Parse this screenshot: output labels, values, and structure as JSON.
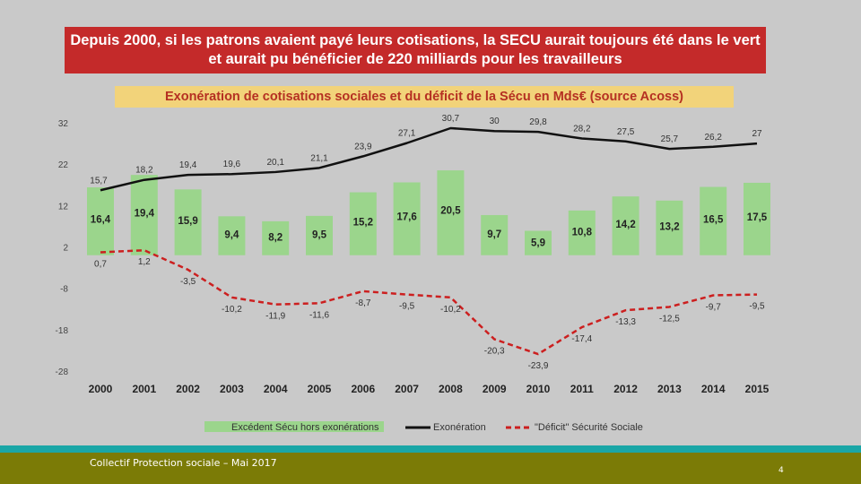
{
  "slide": {
    "title_line1": "Depuis 2000, si les patrons avaient payé leurs cotisations, la SECU aurait toujours été dans le vert",
    "title_line2": "et aurait pu bénéficier de 220 milliards pour les travailleurs",
    "footer": "Collectif Protection sociale – Mai 2017",
    "page_number": "4"
  },
  "colors": {
    "bar": "#9bd58c",
    "exoneration_line": "#111111",
    "deficit_line": "#cc1f1f",
    "banner": "#c42a2a",
    "subtitle_bg": "#f2d37a"
  },
  "chart_data": {
    "type": "bar",
    "title": "Exonération de cotisations sociales et du déficit de la Sécu en Mds€ (source Acoss)",
    "categories": [
      "2000",
      "2001",
      "2002",
      "2003",
      "2004",
      "2005",
      "2006",
      "2007",
      "2008",
      "2009",
      "2010",
      "2011",
      "2012",
      "2013",
      "2014",
      "2015"
    ],
    "series": [
      {
        "name": "Excédent Sécu hors exonérations",
        "kind": "bar",
        "values": [
          16.4,
          19.4,
          15.9,
          9.4,
          8.2,
          9.5,
          15.2,
          17.6,
          20.5,
          9.7,
          5.9,
          10.8,
          14.2,
          13.2,
          16.5,
          17.5
        ],
        "labels": [
          "16,4",
          "19,4",
          "15,9",
          "9,4",
          "8,2",
          "9,5",
          "15,2",
          "17,6",
          "20,5",
          "9,7",
          "5,9",
          "10,8",
          "14,2",
          "13,2",
          "16,5",
          "17,5"
        ]
      },
      {
        "name": "Exonération",
        "kind": "line",
        "values": [
          15.7,
          18.2,
          19.4,
          19.6,
          20.1,
          21.1,
          23.9,
          27.1,
          30.7,
          30,
          29.8,
          28.2,
          27.5,
          25.7,
          26.2,
          27
        ],
        "labels": [
          "15,7",
          "18,2",
          "19,4",
          "19,6",
          "20,1",
          "21,1",
          "23,9",
          "27,1",
          "30,7",
          "30",
          "29,8",
          "28,2",
          "27,5",
          "25,7",
          "26,2",
          "27"
        ]
      },
      {
        "name": "\"Déficit\" Sécurité Sociale",
        "kind": "dashed-line",
        "values": [
          0.7,
          1.2,
          -3.5,
          -10.2,
          -11.9,
          -11.6,
          -8.7,
          -9.5,
          -10.2,
          -20.3,
          -23.9,
          -17.4,
          -13.3,
          -12.5,
          -9.7,
          -9.5
        ],
        "labels": [
          "0,7",
          "1,2",
          "-3,5",
          "-10,2",
          "-11,9",
          "-11,6",
          "-8,7",
          "-9,5",
          "-10,2",
          "-20,3",
          "-23,9",
          "-17,4",
          "-13,3",
          "-12,5",
          "-9,7",
          "-9,5"
        ]
      }
    ],
    "yticks": [
      -28,
      -18,
      -8,
      2,
      12,
      22,
      32
    ],
    "ylim": [
      -28,
      32
    ],
    "legend": [
      "Excédent Sécu hors exonérations",
      "Exonération",
      "\"Déficit\" Sécurité Sociale"
    ],
    "legend_position": "bottom",
    "grid": false
  }
}
